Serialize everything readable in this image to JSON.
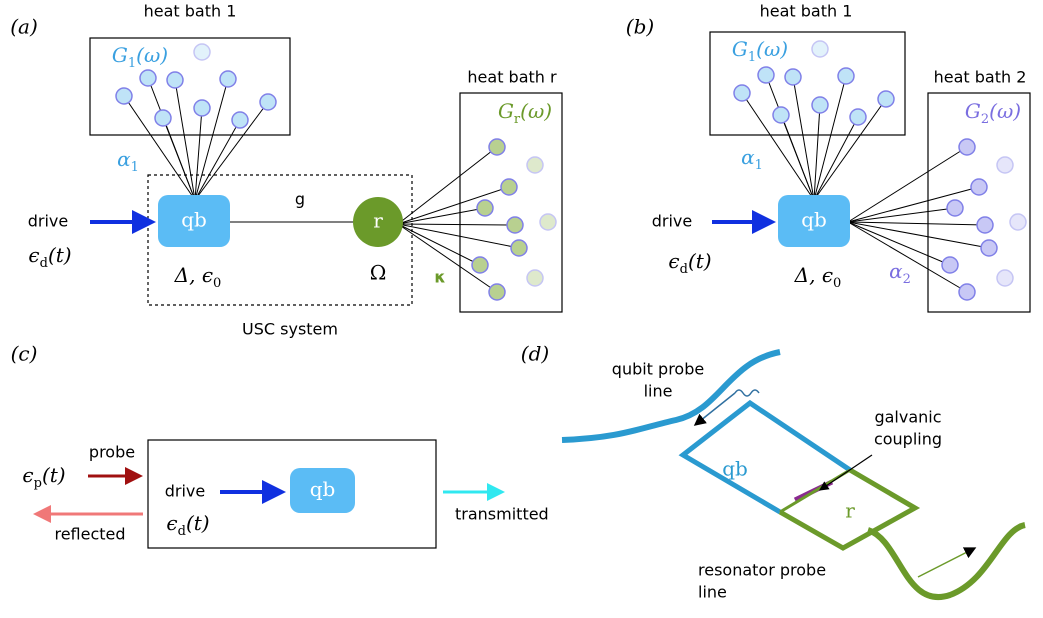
{
  "panel_a": {
    "label": "(a)",
    "bath_1": {
      "title": "heat bath 1",
      "spectrum": {
        "base": "G",
        "sub": "1",
        "rest": "(ω)"
      }
    },
    "bath_r": {
      "title": "heat bath r",
      "spectrum": {
        "base": "G",
        "sub": "r",
        "rest": "(ω)"
      }
    },
    "alpha": {
      "base": "α",
      "sub": "1"
    },
    "coupling": "g",
    "drive": "drive",
    "drive_field": {
      "base": "ϵ",
      "sub": "d",
      "rest": "(t)"
    },
    "qubit": "qb",
    "resonator": "r",
    "qubit_params": {
      "base": "Δ, ϵ",
      "sub": "0"
    },
    "resonator_freq": "Ω",
    "loss": "κ",
    "system": "USC system"
  },
  "panel_b": {
    "label": "(b)",
    "bath_1": {
      "title": "heat bath 1",
      "spectrum": {
        "base": "G",
        "sub": "1",
        "rest": "(ω)"
      }
    },
    "bath_2": {
      "title": "heat bath 2",
      "spectrum": {
        "base": "G",
        "sub": "2",
        "rest": "(ω)"
      }
    },
    "alpha_1": {
      "base": "α",
      "sub": "1"
    },
    "alpha_2": {
      "base": "α",
      "sub": "2"
    },
    "drive": "drive",
    "drive_field": {
      "base": "ϵ",
      "sub": "d",
      "rest": "(t)"
    },
    "qubit": "qb",
    "qubit_params": {
      "base": "Δ, ϵ",
      "sub": "0"
    }
  },
  "panel_c": {
    "label": "(c)",
    "probe": "probe",
    "probe_field": {
      "base": "ϵ",
      "sub": "p",
      "rest": "(t)"
    },
    "reflected": "reflected",
    "drive": "drive",
    "drive_field": {
      "base": "ϵ",
      "sub": "d",
      "rest": "(t)"
    },
    "qubit": "qb",
    "transmitted": "transmitted"
  },
  "panel_d": {
    "label": "(d)",
    "qubit_probe_line": [
      "qubit probe",
      "line"
    ],
    "galvanic_coupling": [
      "galvanic",
      "coupling"
    ],
    "qubit": "qb",
    "resonator": "r",
    "resonator_probe_line": [
      "resonator probe",
      "line"
    ]
  }
}
